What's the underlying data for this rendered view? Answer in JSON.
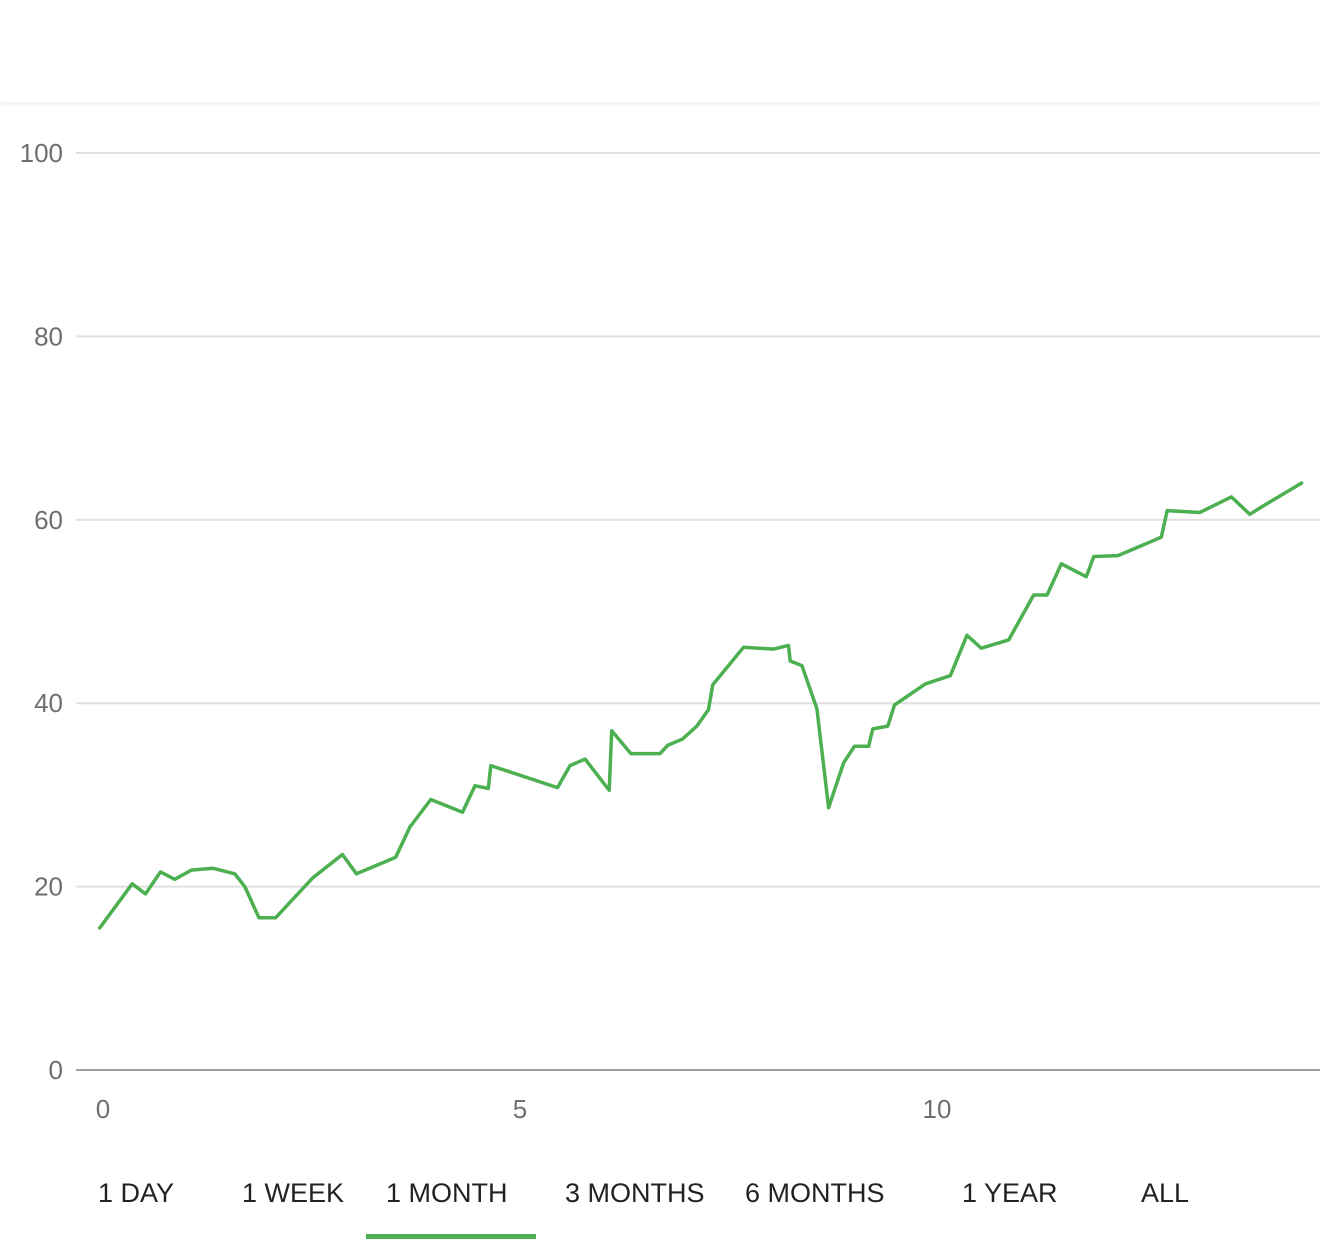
{
  "chart_data": {
    "type": "line",
    "title": "",
    "xlabel": "",
    "ylabel": "",
    "xlim": [
      0,
      14.5
    ],
    "ylim": [
      0,
      100
    ],
    "x_ticks": [
      0,
      5,
      10
    ],
    "y_ticks": [
      0,
      20,
      40,
      60,
      80,
      100
    ],
    "x_tick_labels": [
      "0",
      "5",
      "10"
    ],
    "y_tick_labels": [
      "0",
      "20",
      "40",
      "60",
      "80",
      "100"
    ],
    "grid": true,
    "line_color": "#4caf50",
    "series": [
      {
        "x": [
          -0.04,
          0.35,
          0.51,
          0.69,
          0.86,
          1.06,
          1.32,
          1.58,
          1.7,
          1.87,
          2.07,
          2.51,
          2.87,
          3.04,
          3.51,
          3.68,
          3.93,
          4.31,
          4.46,
          4.62,
          4.65,
          5.45,
          5.6,
          5.78,
          6.07,
          6.1,
          6.33,
          6.68,
          6.77,
          6.95,
          7.12,
          7.26,
          7.31,
          7.68,
          8.04,
          8.22,
          8.24,
          8.38,
          8.56,
          8.7,
          8.88,
          9.01,
          9.18,
          9.23,
          9.41,
          9.49,
          9.86,
          10.16,
          10.36,
          10.53,
          10.86,
          11.16,
          11.32,
          11.49,
          11.79,
          11.88,
          12.17,
          12.69,
          12.76,
          13.15,
          13.53,
          13.75,
          13.89,
          14.37
        ],
        "y": [
          15.5,
          20.3,
          19.2,
          21.6,
          20.8,
          21.8,
          22.0,
          21.4,
          20.0,
          16.6,
          16.6,
          20.9,
          23.5,
          21.4,
          23.2,
          26.5,
          29.5,
          28.1,
          31.0,
          30.7,
          33.2,
          30.8,
          33.2,
          33.9,
          30.5,
          37.0,
          34.5,
          34.5,
          35.4,
          36.1,
          37.5,
          39.3,
          42.0,
          46.1,
          45.9,
          46.3,
          44.6,
          44.1,
          39.4,
          28.6,
          33.5,
          35.3,
          35.3,
          37.2,
          37.5,
          39.8,
          42.1,
          43.0,
          47.4,
          46.0,
          46.9,
          51.8,
          51.8,
          55.2,
          53.8,
          56.0,
          56.1,
          58.1,
          61.0,
          60.8,
          62.5,
          60.6,
          61.4,
          64.0
        ]
      }
    ]
  },
  "tabs": [
    {
      "label": "1 DAY"
    },
    {
      "label": "1 WEEK"
    },
    {
      "label": "1 MONTH"
    },
    {
      "label": "3 MONTHS"
    },
    {
      "label": "6 MONTHS"
    },
    {
      "label": "1 YEAR"
    },
    {
      "label": "ALL"
    }
  ],
  "selected_tab": "1 MONTH",
  "colors": {
    "accent": "#4caf50",
    "grid": "#e0e0e0",
    "axis": "#9e9e9e",
    "tick_text": "#6f6f6f",
    "tab_text": "#222222"
  }
}
